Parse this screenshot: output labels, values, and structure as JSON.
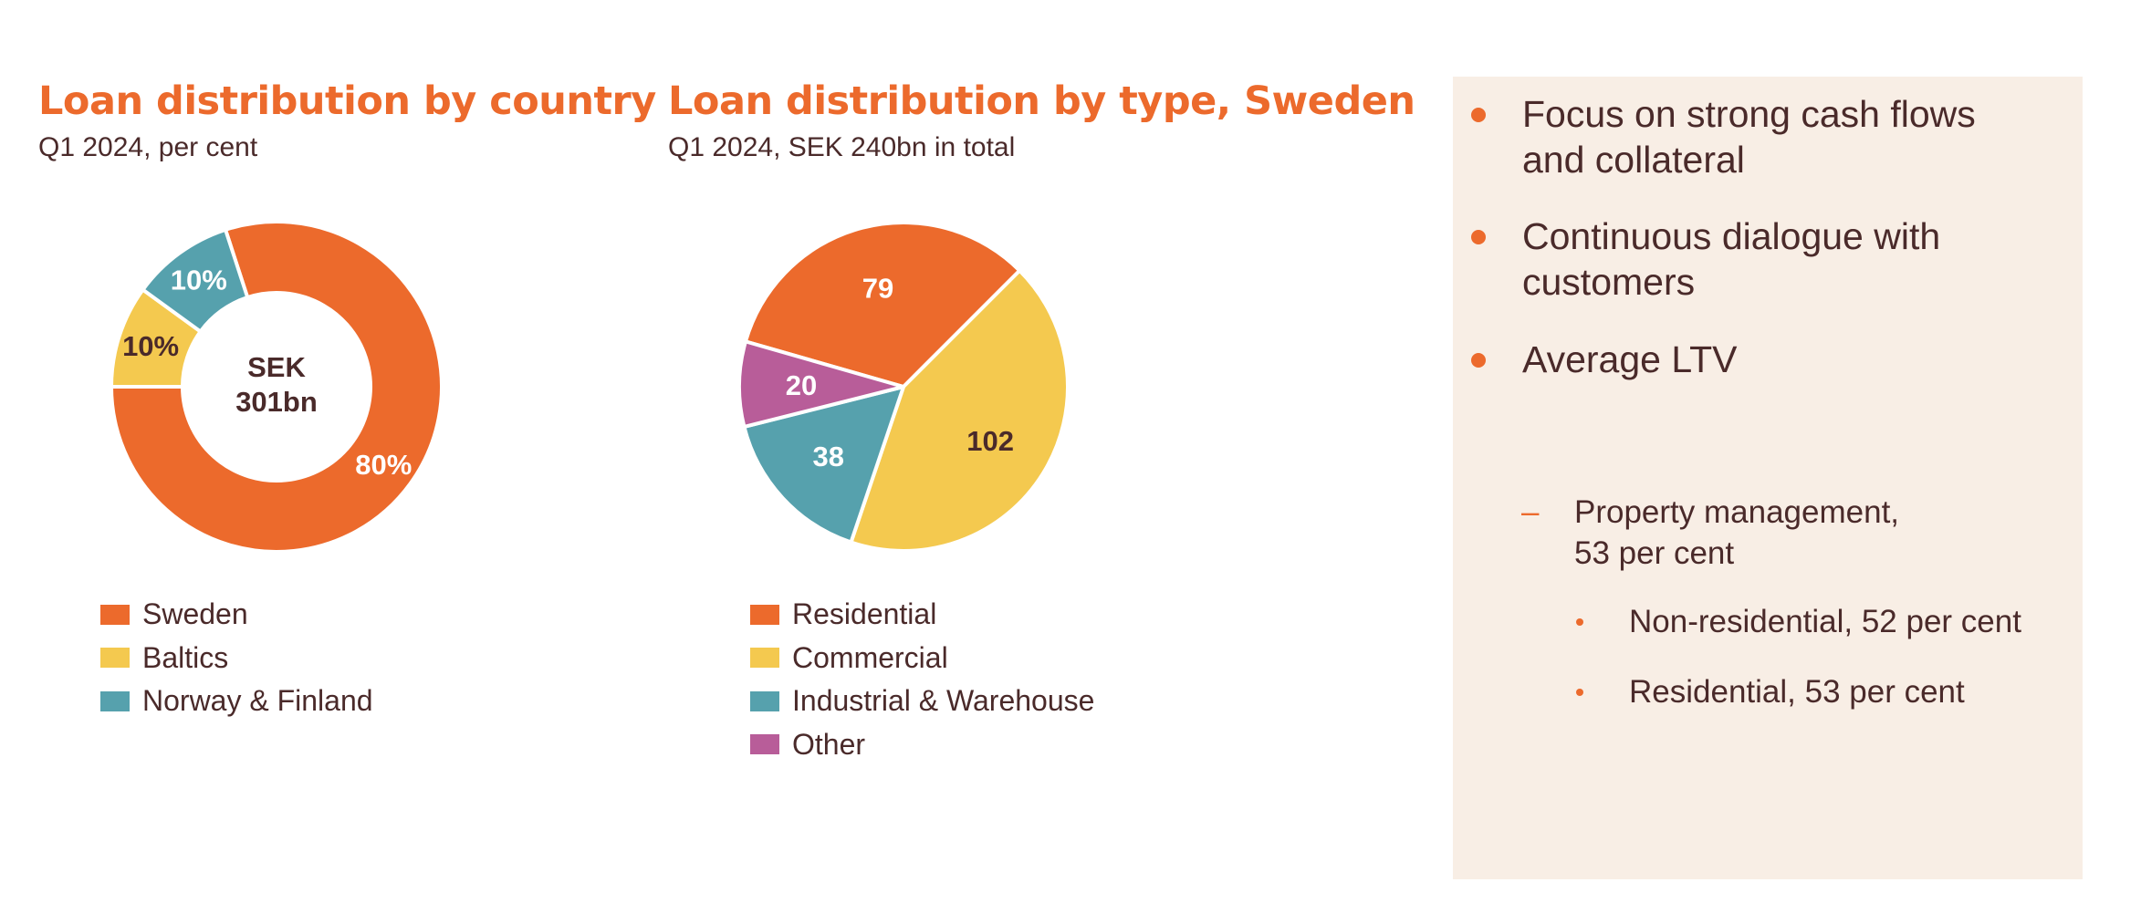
{
  "chart_data": [
    {
      "type": "pie",
      "title": "Loan distribution by country",
      "subtitle": "Q1 2024, per cent",
      "center_label": [
        "SEK",
        "301bn"
      ],
      "categories": [
        "Sweden",
        "Baltics",
        "Norway & Finland"
      ],
      "values": [
        80,
        10,
        10
      ],
      "data_labels": [
        "80%",
        "10%",
        "10%"
      ],
      "colors": [
        "#ec6a2c",
        "#f4c94f",
        "#56a1ad"
      ],
      "label_colors": [
        "#ffffff",
        "#4a2a2a",
        "#ffffff"
      ],
      "legend_position": "bottom"
    },
    {
      "type": "pie",
      "title": "Loan distribution by type, Sweden",
      "subtitle": "Q1 2024, SEK 240bn in total",
      "categories": [
        "Residential",
        "Commercial",
        "Industrial & Warehouse",
        "Other"
      ],
      "values": [
        79,
        102,
        38,
        20
      ],
      "data_labels": [
        "79",
        "102",
        "38",
        "20"
      ],
      "colors": [
        "#ec6a2c",
        "#f4c94f",
        "#56a1ad",
        "#b85d99"
      ],
      "label_colors": [
        "#ffffff",
        "#4a2a2a",
        "#ffffff",
        "#ffffff"
      ],
      "legend_position": "bottom"
    }
  ],
  "panel": {
    "bullets": [
      {
        "level": 1,
        "text_lines": [
          "Focus on strong cash flows",
          "and collateral"
        ]
      },
      {
        "level": 1,
        "text_lines": [
          "Continuous dialogue with",
          "customers"
        ]
      },
      {
        "level": 1,
        "text_lines": [
          "Average LTV"
        ]
      },
      {
        "level": 2,
        "text_lines": [
          "Property management,",
          "53 per cent"
        ]
      },
      {
        "level": 3,
        "text_lines": [
          "Non-residential, 52 per cent"
        ]
      },
      {
        "level": 3,
        "text_lines": [
          "Residential, 53 per cent"
        ]
      }
    ],
    "background": "#f8eee5",
    "marker_color": "#ec6a2c"
  }
}
